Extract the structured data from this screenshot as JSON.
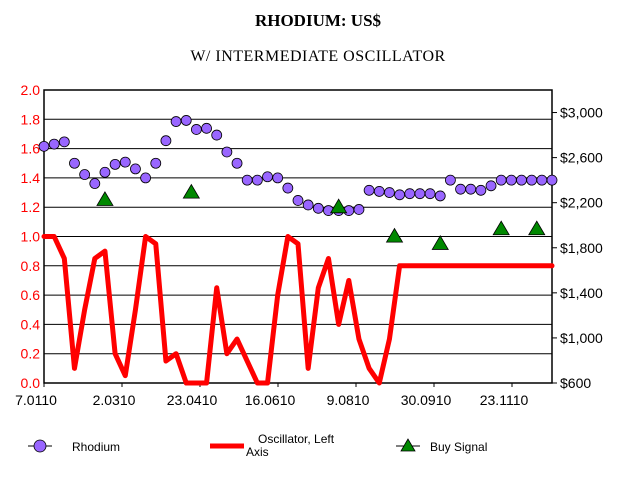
{
  "chart_data": {
    "type": "line",
    "title": "RHODIUM: US$",
    "subtitle": "W/ INTERMEDIATE OSCILLATOR",
    "left_axis": {
      "ylim": [
        0.0,
        2.0
      ],
      "ticks": [
        "0.0",
        "0.2",
        "0.4",
        "0.6",
        "0.8",
        "1.0",
        "1.2",
        "1.4",
        "1.6",
        "1.8",
        "2.0"
      ],
      "color": "#ff0000"
    },
    "right_axis": {
      "ylim": [
        600,
        3200
      ],
      "ticks": [
        "$600",
        "$1,000",
        "$1,400",
        "$1,800",
        "$2,200",
        "$2,600",
        "$3,000"
      ]
    },
    "x_ticks": [
      "7.0110",
      "2.0310",
      "23.0410",
      "16.0610",
      "9.0810",
      "30.0910",
      "23.1110"
    ],
    "grid": true,
    "legend_placement": "bottom",
    "series": [
      {
        "name": "Rhodium",
        "axis": "right",
        "style": "markers",
        "color": "#9966ff",
        "x": [
          0,
          2,
          4,
          6,
          8,
          10,
          12,
          14,
          16,
          18,
          20,
          22,
          24,
          26,
          28,
          30,
          32,
          34,
          36,
          38,
          40,
          42,
          44,
          46,
          48,
          50,
          52,
          54,
          56,
          58,
          60,
          62,
          64,
          66,
          68,
          70,
          72,
          74,
          76,
          78,
          80,
          82,
          84,
          86,
          88,
          90,
          92,
          94,
          96,
          98,
          100
        ],
        "values": [
          2700,
          2720,
          2740,
          2550,
          2450,
          2370,
          2470,
          2540,
          2560,
          2500,
          2420,
          2550,
          2750,
          2920,
          2930,
          2850,
          2860,
          2800,
          2650,
          2550,
          2400,
          2400,
          2430,
          2420,
          2330,
          2220,
          2180,
          2150,
          2130,
          2130,
          2130,
          2140,
          2310,
          2300,
          2290,
          2270,
          2280,
          2280,
          2280,
          2260,
          2400,
          2320,
          2320,
          2310,
          2350,
          2400,
          2400,
          2400,
          2400,
          2400,
          2400
        ]
      },
      {
        "name": "Oscillator, Left Axis",
        "axis": "left",
        "style": "line",
        "color": "#ff0000",
        "x": [
          0,
          2,
          4,
          6,
          8,
          10,
          12,
          14,
          16,
          18,
          20,
          22,
          24,
          26,
          28,
          30,
          32,
          34,
          36,
          38,
          40,
          42,
          44,
          46,
          48,
          50,
          52,
          54,
          56,
          58,
          60,
          62,
          64,
          66,
          68,
          70,
          72,
          74,
          76,
          78,
          80,
          82,
          84,
          86,
          88,
          90,
          92,
          94,
          96,
          98,
          100
        ],
        "values": [
          1.0,
          1.0,
          0.85,
          0.1,
          0.5,
          0.85,
          0.9,
          0.2,
          0.05,
          0.5,
          1.0,
          0.95,
          0.15,
          0.2,
          0.0,
          0.0,
          0.0,
          0.65,
          0.2,
          0.3,
          0.15,
          0.0,
          0.0,
          0.6,
          1.0,
          0.95,
          0.1,
          0.65,
          0.85,
          0.4,
          0.7,
          0.3,
          0.1,
          0.0,
          0.3,
          0.8,
          0.8,
          0.8,
          0.8,
          0.8,
          0.8,
          0.8,
          0.8,
          0.8,
          0.8,
          0.8,
          0.8,
          0.8,
          0.8,
          0.8,
          0.8
        ]
      },
      {
        "name": "Buy Signal",
        "axis": "left",
        "style": "triangles",
        "color": "#008800",
        "x": [
          12,
          29,
          58,
          69,
          78,
          90,
          97
        ],
        "values": [
          1.25,
          1.3,
          1.2,
          1.0,
          0.95,
          1.05,
          1.05
        ]
      }
    ]
  }
}
